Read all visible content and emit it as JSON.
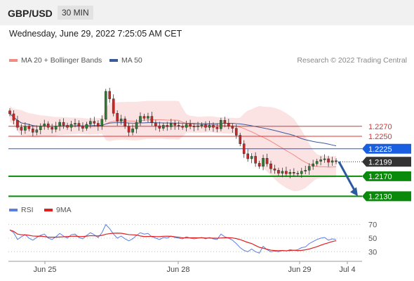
{
  "header": {
    "symbol": "GBP/USD",
    "timeframe": "30 MIN"
  },
  "timestamp": "Wednesday, June 29, 2022 7:25:05 AM CET",
  "legend": [
    {
      "label": "MA 20 + Bollinger Bands",
      "color": "#f28b82"
    },
    {
      "label": "MA 50",
      "color": "#3a5a9a"
    }
  ],
  "copyright": "Research © 2022 Trading Central",
  "rsi_legend": [
    {
      "label": "RSI",
      "color": "#5b7fe0"
    },
    {
      "label": "9MA",
      "color": "#e02020"
    }
  ],
  "chart_data": {
    "type": "candlestick",
    "price_range": [
      1.2115,
      1.2385
    ],
    "current_price": {
      "value": 1.2199,
      "label": "1.2199"
    },
    "levels": [
      {
        "label": "1.2270",
        "value": 1.227,
        "style": "resistance",
        "color": "#e33030"
      },
      {
        "label": "1.2250",
        "value": 1.225,
        "style": "resistance",
        "color": "#e33030"
      },
      {
        "label": "1.2225",
        "value": 1.2225,
        "style": "pivot",
        "color": "#1a5fe0"
      },
      {
        "label": "1.2170",
        "value": 1.217,
        "style": "support",
        "color": "#0a8a0a"
      },
      {
        "label": "1.2130",
        "value": 1.213,
        "style": "support",
        "color": "#0a8a0a"
      }
    ],
    "projection": {
      "from": 1.2199,
      "to": 1.213,
      "color": "#2d5a9e"
    },
    "x_ticks": [
      "Jun 25",
      "Jun 28",
      "Jun 29",
      "Jul 4"
    ],
    "close": [
      1.2295,
      1.2282,
      1.2268,
      1.2262,
      1.227,
      1.2265,
      1.2258,
      1.2263,
      1.227,
      1.2275,
      1.2268,
      1.2264,
      1.227,
      1.2278,
      1.2272,
      1.2268,
      1.2274,
      1.2276,
      1.227,
      1.2266,
      1.2274,
      1.228,
      1.2276,
      1.227,
      1.2284,
      1.234,
      1.2325,
      1.2296,
      1.228,
      1.2285,
      1.227,
      1.2258,
      1.2265,
      1.2278,
      1.229,
      1.2286,
      1.229,
      1.2277,
      1.2271,
      1.2266,
      1.2272,
      1.2269,
      1.2276,
      1.2272,
      1.227,
      1.2268,
      1.2274,
      1.227,
      1.2269,
      1.2271,
      1.2273,
      1.2268,
      1.2272,
      1.2268,
      1.2265,
      1.2282,
      1.2276,
      1.227,
      1.2266,
      1.2252,
      1.2235,
      1.2215,
      1.2205,
      1.221,
      1.2196,
      1.219,
      1.2206,
      1.2195,
      1.2185,
      1.2182,
      1.2176,
      1.218,
      1.2175,
      1.2178,
      1.2176,
      1.2175,
      1.218,
      1.2182,
      1.219,
      1.2195,
      1.22,
      1.2203,
      1.2205,
      1.2198,
      1.2201,
      1.2199
    ],
    "rsi": [
      62,
      58,
      48,
      52,
      55,
      50,
      47,
      51,
      54,
      56,
      50,
      48,
      52,
      57,
      53,
      50,
      55,
      56,
      51,
      49,
      54,
      58,
      55,
      51,
      58,
      70,
      64,
      56,
      50,
      53,
      49,
      46,
      49,
      54,
      58,
      56,
      57,
      52,
      50,
      48,
      51,
      50,
      53,
      51,
      50,
      49,
      52,
      50,
      49,
      50,
      51,
      49,
      51,
      49,
      48,
      56,
      52,
      50,
      47,
      42,
      36,
      32,
      30,
      34,
      30,
      28,
      38,
      33,
      30,
      31,
      30,
      32,
      31,
      33,
      32,
      33,
      36,
      37,
      42,
      45,
      48,
      50,
      51,
      47,
      49,
      48
    ],
    "rsi_ma_label": "9MA",
    "rsi_ticks": [
      "70",
      "50",
      "30"
    ],
    "rsi_range": [
      20,
      80
    ]
  }
}
